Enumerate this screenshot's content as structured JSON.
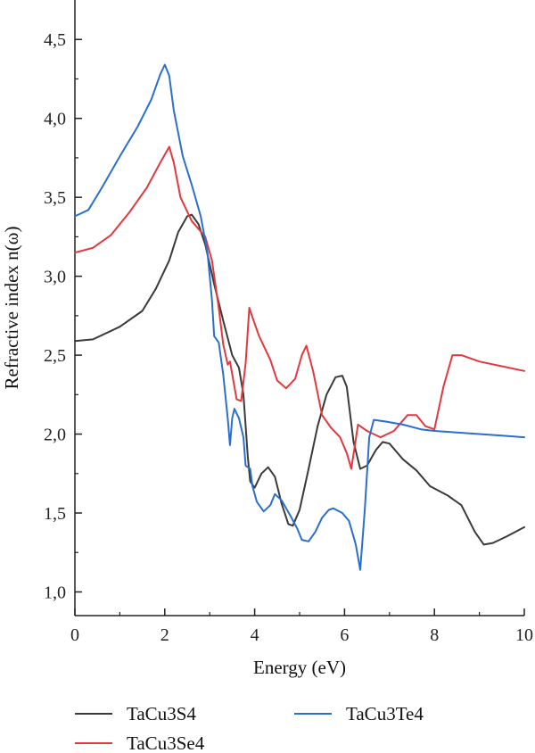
{
  "chart_data": {
    "type": "line",
    "xlabel": "Energy (eV)",
    "ylabel": "Refractive index n(ω)",
    "xlim": [
      0,
      10
    ],
    "ylim": [
      0.85,
      4.75
    ],
    "x_ticks": [
      0,
      2,
      4,
      6,
      8,
      10
    ],
    "x_tick_labels": [
      "0",
      "2",
      "4",
      "6",
      "8",
      "10"
    ],
    "y_ticks": [
      1.0,
      1.5,
      2.0,
      2.5,
      3.0,
      3.5,
      4.0,
      4.5
    ],
    "y_tick_labels": [
      "1,0",
      "1,5",
      "2,0",
      "2,5",
      "3,0",
      "3,5",
      "4,0",
      "4,5"
    ],
    "grid": false,
    "legend_position": "bottom",
    "series": [
      {
        "name": "TaCu3S4",
        "color": "#3a3a3a",
        "points": [
          [
            0,
            2.59
          ],
          [
            0.4,
            2.6
          ],
          [
            1.0,
            2.68
          ],
          [
            1.5,
            2.78
          ],
          [
            1.8,
            2.92
          ],
          [
            2.1,
            3.1
          ],
          [
            2.3,
            3.28
          ],
          [
            2.5,
            3.38
          ],
          [
            2.6,
            3.39
          ],
          [
            2.75,
            3.33
          ],
          [
            2.9,
            3.2
          ],
          [
            3.1,
            2.95
          ],
          [
            3.3,
            2.72
          ],
          [
            3.5,
            2.5
          ],
          [
            3.65,
            2.42
          ],
          [
            3.75,
            2.25
          ],
          [
            3.85,
            1.85
          ],
          [
            3.9,
            1.7
          ],
          [
            4.0,
            1.66
          ],
          [
            4.15,
            1.75
          ],
          [
            4.3,
            1.79
          ],
          [
            4.45,
            1.73
          ],
          [
            4.6,
            1.56
          ],
          [
            4.75,
            1.43
          ],
          [
            4.85,
            1.42
          ],
          [
            5.0,
            1.52
          ],
          [
            5.2,
            1.78
          ],
          [
            5.4,
            2.05
          ],
          [
            5.6,
            2.25
          ],
          [
            5.8,
            2.36
          ],
          [
            5.95,
            2.37
          ],
          [
            6.05,
            2.3
          ],
          [
            6.2,
            1.95
          ],
          [
            6.35,
            1.78
          ],
          [
            6.5,
            1.8
          ],
          [
            6.7,
            1.9
          ],
          [
            6.85,
            1.95
          ],
          [
            7.0,
            1.94
          ],
          [
            7.3,
            1.84
          ],
          [
            7.6,
            1.77
          ],
          [
            7.9,
            1.67
          ],
          [
            8.3,
            1.61
          ],
          [
            8.6,
            1.55
          ],
          [
            8.9,
            1.38
          ],
          [
            9.1,
            1.3
          ],
          [
            9.3,
            1.31
          ],
          [
            9.6,
            1.35
          ],
          [
            10,
            1.41
          ]
        ]
      },
      {
        "name": "TaCu3Se4",
        "color": "#e2383f",
        "points": [
          [
            0,
            3.15
          ],
          [
            0.4,
            3.18
          ],
          [
            0.8,
            3.26
          ],
          [
            1.2,
            3.4
          ],
          [
            1.6,
            3.56
          ],
          [
            1.9,
            3.72
          ],
          [
            2.1,
            3.82
          ],
          [
            2.2,
            3.72
          ],
          [
            2.35,
            3.5
          ],
          [
            2.6,
            3.35
          ],
          [
            2.9,
            3.25
          ],
          [
            3.05,
            3.1
          ],
          [
            3.2,
            2.8
          ],
          [
            3.3,
            2.57
          ],
          [
            3.4,
            2.44
          ],
          [
            3.45,
            2.46
          ],
          [
            3.5,
            2.38
          ],
          [
            3.6,
            2.22
          ],
          [
            3.7,
            2.21
          ],
          [
            3.8,
            2.45
          ],
          [
            3.88,
            2.8
          ],
          [
            3.95,
            2.74
          ],
          [
            4.1,
            2.62
          ],
          [
            4.35,
            2.47
          ],
          [
            4.5,
            2.34
          ],
          [
            4.7,
            2.29
          ],
          [
            4.9,
            2.35
          ],
          [
            5.05,
            2.5
          ],
          [
            5.15,
            2.56
          ],
          [
            5.3,
            2.4
          ],
          [
            5.5,
            2.12
          ],
          [
            5.7,
            2.04
          ],
          [
            5.9,
            1.98
          ],
          [
            6.05,
            1.88
          ],
          [
            6.15,
            1.78
          ],
          [
            6.3,
            2.06
          ],
          [
            6.5,
            2.02
          ],
          [
            6.8,
            1.98
          ],
          [
            7.1,
            2.02
          ],
          [
            7.4,
            2.12
          ],
          [
            7.6,
            2.12
          ],
          [
            7.8,
            2.05
          ],
          [
            8.0,
            2.03
          ],
          [
            8.2,
            2.3
          ],
          [
            8.4,
            2.5
          ],
          [
            8.6,
            2.5
          ],
          [
            9.0,
            2.46
          ],
          [
            9.5,
            2.43
          ],
          [
            10,
            2.4
          ]
        ]
      },
      {
        "name": "TaCu3Te4",
        "color": "#2b6fce",
        "points": [
          [
            0,
            3.38
          ],
          [
            0.3,
            3.42
          ],
          [
            0.6,
            3.56
          ],
          [
            1.0,
            3.76
          ],
          [
            1.4,
            3.95
          ],
          [
            1.7,
            4.12
          ],
          [
            1.9,
            4.28
          ],
          [
            2.0,
            4.34
          ],
          [
            2.1,
            4.27
          ],
          [
            2.2,
            4.05
          ],
          [
            2.4,
            3.76
          ],
          [
            2.6,
            3.58
          ],
          [
            2.8,
            3.38
          ],
          [
            2.95,
            3.15
          ],
          [
            3.05,
            2.85
          ],
          [
            3.1,
            2.62
          ],
          [
            3.2,
            2.58
          ],
          [
            3.3,
            2.38
          ],
          [
            3.4,
            2.1
          ],
          [
            3.45,
            1.93
          ],
          [
            3.5,
            2.1
          ],
          [
            3.55,
            2.16
          ],
          [
            3.65,
            2.1
          ],
          [
            3.75,
            1.98
          ],
          [
            3.8,
            1.8
          ],
          [
            3.9,
            1.78
          ],
          [
            3.95,
            1.67
          ],
          [
            4.05,
            1.57
          ],
          [
            4.2,
            1.51
          ],
          [
            4.35,
            1.55
          ],
          [
            4.45,
            1.62
          ],
          [
            4.6,
            1.58
          ],
          [
            4.8,
            1.48
          ],
          [
            4.95,
            1.4
          ],
          [
            5.05,
            1.33
          ],
          [
            5.2,
            1.32
          ],
          [
            5.35,
            1.38
          ],
          [
            5.5,
            1.47
          ],
          [
            5.65,
            1.52
          ],
          [
            5.75,
            1.53
          ],
          [
            5.95,
            1.5
          ],
          [
            6.1,
            1.45
          ],
          [
            6.25,
            1.3
          ],
          [
            6.35,
            1.14
          ],
          [
            6.45,
            1.52
          ],
          [
            6.55,
            1.98
          ],
          [
            6.65,
            2.09
          ],
          [
            6.9,
            2.08
          ],
          [
            7.3,
            2.06
          ],
          [
            7.7,
            2.03
          ],
          [
            8.0,
            2.02
          ],
          [
            8.5,
            2.01
          ],
          [
            9.0,
            2.0
          ],
          [
            9.5,
            1.99
          ],
          [
            10,
            1.98
          ]
        ]
      }
    ]
  }
}
